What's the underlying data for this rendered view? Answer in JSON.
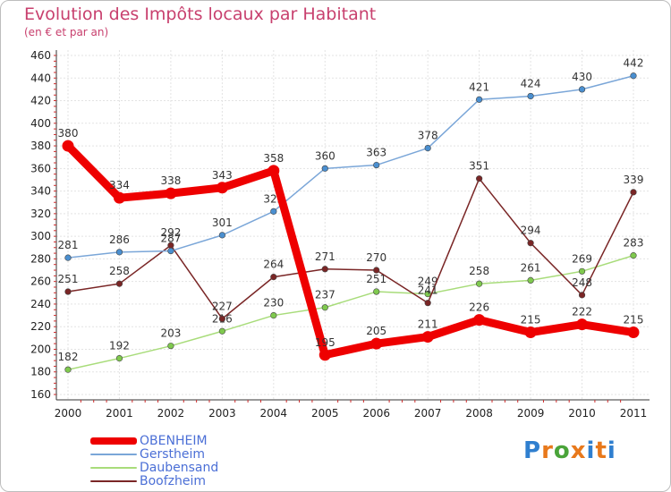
{
  "header": {
    "title": "Evolution des Impôts locaux par Habitant",
    "subtitle": "(en € et par an)"
  },
  "logo": {
    "text": "Proxiti",
    "colors": [
      "#2f7fcf",
      "#e8791c",
      "#4aa43a",
      "#e8791c",
      "#2f7fcf",
      "#e8791c",
      "#2f7fcf"
    ]
  },
  "chart_data": {
    "type": "line",
    "x": [
      "2000",
      "2001",
      "2002",
      "2003",
      "2004",
      "2005",
      "2006",
      "2007",
      "2008",
      "2009",
      "2010",
      "2011"
    ],
    "ylim": [
      160,
      460
    ],
    "yticks": [
      160,
      180,
      200,
      220,
      240,
      260,
      280,
      300,
      320,
      340,
      360,
      380,
      400,
      420,
      440,
      460
    ],
    "grid": true,
    "legend": "bottom-left",
    "series": [
      {
        "name": "Daubensand",
        "color": "#a8dc7a",
        "marker": "#7fc94e",
        "values": [
          182,
          192,
          203,
          216,
          230,
          237,
          251,
          249,
          258,
          261,
          269,
          283
        ]
      },
      {
        "name": "Boofzheim",
        "color": "#7a2626",
        "marker": "#7a2626",
        "values": [
          251,
          258,
          292,
          227,
          264,
          271,
          270,
          241,
          351,
          294,
          248,
          339
        ]
      },
      {
        "name": "Gerstheim",
        "color": "#7aa6d8",
        "marker": "#4a8fd0",
        "values": [
          281,
          286,
          287,
          301,
          322,
          360,
          363,
          378,
          421,
          424,
          430,
          442
        ]
      },
      {
        "name": "OBENHEIM",
        "color": "#ee0000",
        "marker": "#ee0000",
        "values": [
          380,
          334,
          338,
          343,
          358,
          195,
          205,
          211,
          226,
          215,
          222,
          215
        ]
      }
    ],
    "legend_order": [
      "OBENHEIM",
      "Gerstheim",
      "Daubensand",
      "Boofzheim"
    ]
  }
}
